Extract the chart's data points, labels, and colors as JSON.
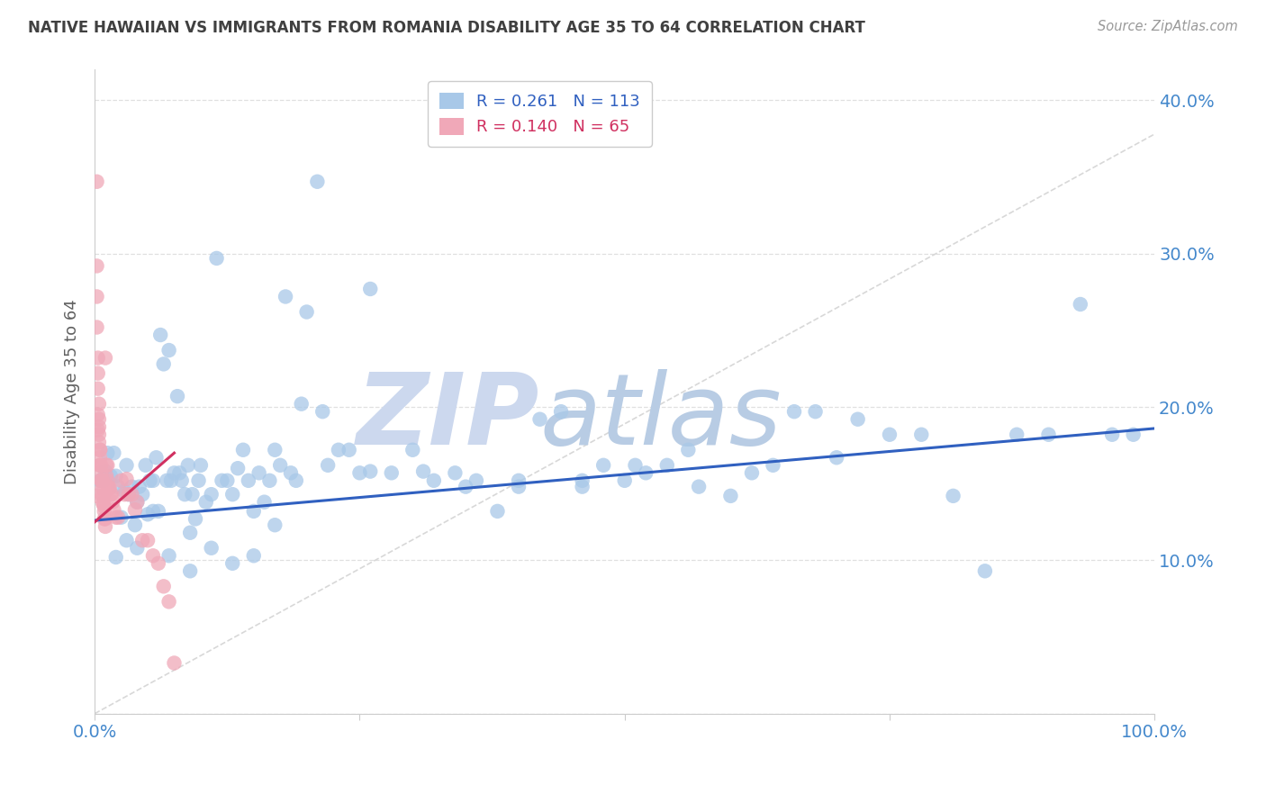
{
  "title": "NATIVE HAWAIIAN VS IMMIGRANTS FROM ROMANIA DISABILITY AGE 35 TO 64 CORRELATION CHART",
  "source": "Source: ZipAtlas.com",
  "ylabel": "Disability Age 35 to 64",
  "xmin": 0.0,
  "xmax": 1.0,
  "ymin": 0.0,
  "ymax": 0.42,
  "yticks": [
    0.0,
    0.1,
    0.2,
    0.3,
    0.4
  ],
  "watermark": "ZIPatlas",
  "blue_color": "#a8c8e8",
  "pink_color": "#f0a8b8",
  "blue_line_color": "#3060c0",
  "pink_line_color": "#d03060",
  "diagonal_color": "#d8d8d8",
  "grid_color": "#e0e0e0",
  "title_color": "#404040",
  "axis_label_color": "#4488cc",
  "watermark_color": "#ccd8ee",
  "bg_color": "#ffffff",
  "blue_R": 0.261,
  "blue_N": 113,
  "pink_R": 0.14,
  "pink_N": 65,
  "blue_line_x0": 0.0,
  "blue_line_x1": 1.0,
  "blue_line_y0": 0.126,
  "blue_line_y1": 0.186,
  "pink_line_x0": 0.0,
  "pink_line_x1": 0.075,
  "pink_line_y0": 0.125,
  "pink_line_y1": 0.17,
  "blue_x": [
    0.005,
    0.008,
    0.01,
    0.012,
    0.015,
    0.018,
    0.02,
    0.022,
    0.025,
    0.028,
    0.03,
    0.032,
    0.035,
    0.038,
    0.04,
    0.042,
    0.045,
    0.048,
    0.05,
    0.052,
    0.055,
    0.058,
    0.06,
    0.062,
    0.065,
    0.068,
    0.07,
    0.072,
    0.075,
    0.078,
    0.08,
    0.082,
    0.085,
    0.088,
    0.09,
    0.092,
    0.095,
    0.098,
    0.1,
    0.105,
    0.11,
    0.115,
    0.12,
    0.125,
    0.13,
    0.135,
    0.14,
    0.145,
    0.15,
    0.155,
    0.16,
    0.165,
    0.17,
    0.175,
    0.18,
    0.185,
    0.19,
    0.2,
    0.21,
    0.22,
    0.23,
    0.24,
    0.25,
    0.26,
    0.28,
    0.3,
    0.32,
    0.34,
    0.36,
    0.38,
    0.4,
    0.42,
    0.44,
    0.46,
    0.48,
    0.5,
    0.52,
    0.54,
    0.56,
    0.6,
    0.62,
    0.64,
    0.66,
    0.68,
    0.7,
    0.72,
    0.75,
    0.78,
    0.81,
    0.84,
    0.87,
    0.9,
    0.93,
    0.96,
    0.98,
    0.02,
    0.03,
    0.04,
    0.055,
    0.07,
    0.09,
    0.11,
    0.13,
    0.15,
    0.17,
    0.195,
    0.215,
    0.26,
    0.31,
    0.35,
    0.4,
    0.46,
    0.51,
    0.57
  ],
  "blue_y": [
    0.152,
    0.152,
    0.158,
    0.17,
    0.155,
    0.17,
    0.155,
    0.148,
    0.128,
    0.145,
    0.162,
    0.143,
    0.148,
    0.123,
    0.138,
    0.148,
    0.143,
    0.162,
    0.13,
    0.152,
    0.152,
    0.167,
    0.132,
    0.247,
    0.228,
    0.152,
    0.237,
    0.152,
    0.157,
    0.207,
    0.157,
    0.152,
    0.143,
    0.162,
    0.118,
    0.143,
    0.127,
    0.152,
    0.162,
    0.138,
    0.143,
    0.297,
    0.152,
    0.152,
    0.143,
    0.16,
    0.172,
    0.152,
    0.132,
    0.157,
    0.138,
    0.152,
    0.172,
    0.162,
    0.272,
    0.157,
    0.152,
    0.262,
    0.347,
    0.162,
    0.172,
    0.172,
    0.157,
    0.277,
    0.157,
    0.172,
    0.152,
    0.157,
    0.152,
    0.132,
    0.148,
    0.192,
    0.197,
    0.148,
    0.162,
    0.152,
    0.157,
    0.162,
    0.172,
    0.142,
    0.157,
    0.162,
    0.197,
    0.197,
    0.167,
    0.192,
    0.182,
    0.182,
    0.142,
    0.093,
    0.182,
    0.182,
    0.267,
    0.182,
    0.182,
    0.102,
    0.113,
    0.108,
    0.132,
    0.103,
    0.093,
    0.108,
    0.098,
    0.103,
    0.123,
    0.202,
    0.197,
    0.158,
    0.158,
    0.148,
    0.152,
    0.152,
    0.162,
    0.148
  ],
  "pink_x": [
    0.002,
    0.002,
    0.002,
    0.002,
    0.003,
    0.003,
    0.003,
    0.003,
    0.003,
    0.004,
    0.004,
    0.004,
    0.004,
    0.004,
    0.005,
    0.005,
    0.005,
    0.005,
    0.005,
    0.006,
    0.006,
    0.006,
    0.006,
    0.007,
    0.007,
    0.007,
    0.007,
    0.008,
    0.008,
    0.008,
    0.008,
    0.009,
    0.009,
    0.009,
    0.01,
    0.01,
    0.01,
    0.011,
    0.011,
    0.012,
    0.012,
    0.013,
    0.013,
    0.014,
    0.015,
    0.016,
    0.017,
    0.018,
    0.02,
    0.022,
    0.025,
    0.028,
    0.03,
    0.032,
    0.035,
    0.038,
    0.04,
    0.045,
    0.05,
    0.055,
    0.06,
    0.065,
    0.07,
    0.075,
    0.002
  ],
  "pink_y": [
    0.347,
    0.292,
    0.272,
    0.252,
    0.232,
    0.222,
    0.212,
    0.195,
    0.185,
    0.202,
    0.192,
    0.187,
    0.182,
    0.177,
    0.172,
    0.172,
    0.167,
    0.162,
    0.162,
    0.162,
    0.152,
    0.157,
    0.152,
    0.152,
    0.152,
    0.147,
    0.142,
    0.147,
    0.142,
    0.137,
    0.137,
    0.135,
    0.132,
    0.127,
    0.127,
    0.122,
    0.232,
    0.162,
    0.155,
    0.162,
    0.152,
    0.147,
    0.148,
    0.147,
    0.143,
    0.143,
    0.138,
    0.133,
    0.128,
    0.128,
    0.152,
    0.143,
    0.153,
    0.143,
    0.143,
    0.133,
    0.138,
    0.113,
    0.113,
    0.103,
    0.098,
    0.083,
    0.073,
    0.033,
    0.142
  ]
}
